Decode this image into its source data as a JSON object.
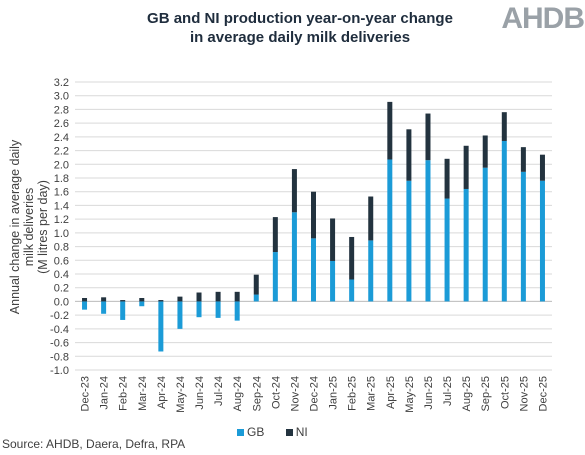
{
  "title_line1": "GB and NI production year-on-year change",
  "title_line2": "in average daily milk deliveries",
  "logo_text": "AHDB",
  "source": "Source: AHDB, Daera, Defra, RPA",
  "colors": {
    "GB": "#1b9bd7",
    "NI": "#23333f",
    "grid": "#d9d9d9",
    "axis": "#bfbfbf"
  },
  "chart_data": {
    "type": "bar",
    "stacked": true,
    "title": "GB and NI production year-on-year change in average daily milk deliveries",
    "ylabel_line1": "Annual change in average daily milk deliveries",
    "ylabel_line2": "(M litres per day)",
    "ylim": [
      -1.0,
      3.2
    ],
    "ystep": 0.2,
    "yticks": [
      "-1.0",
      "-0.8",
      "-0.6",
      "-0.4",
      "-0.2",
      "0.0",
      "0.2",
      "0.4",
      "0.6",
      "0.8",
      "1.0",
      "1.2",
      "1.4",
      "1.6",
      "1.8",
      "2.0",
      "2.2",
      "2.4",
      "2.6",
      "2.8",
      "3.0",
      "3.2"
    ],
    "grid": true,
    "legend_position": "bottom",
    "categories": [
      "Dec-23",
      "Jan-24",
      "Feb-24",
      "Mar-24",
      "Apr-24",
      "May-24",
      "Jun-24",
      "Jul-24",
      "Aug-24",
      "Sep-24",
      "Oct-24",
      "Nov-24",
      "Dec-24",
      "Jan-25",
      "Feb-25",
      "Mar-25",
      "Apr-25",
      "May-25",
      "Jun-25",
      "Jul-25",
      "Aug-25",
      "Sep-25",
      "Oct-25",
      "Nov-25",
      "Dec-25"
    ],
    "series": [
      {
        "name": "GB",
        "values": [
          -0.12,
          -0.18,
          -0.27,
          -0.07,
          -0.73,
          -0.4,
          -0.23,
          -0.24,
          -0.28,
          0.1,
          0.72,
          1.3,
          0.92,
          0.59,
          0.32,
          0.89,
          2.07,
          1.76,
          2.06,
          1.5,
          1.64,
          1.95,
          2.34,
          1.89,
          1.76
        ]
      },
      {
        "name": "NI",
        "values": [
          0.05,
          0.06,
          0.02,
          0.05,
          0.02,
          0.07,
          0.13,
          0.14,
          0.14,
          0.29,
          0.51,
          0.63,
          0.68,
          0.62,
          0.62,
          0.64,
          0.84,
          0.75,
          0.68,
          0.58,
          0.63,
          0.47,
          0.42,
          0.36,
          0.38
        ]
      }
    ]
  }
}
